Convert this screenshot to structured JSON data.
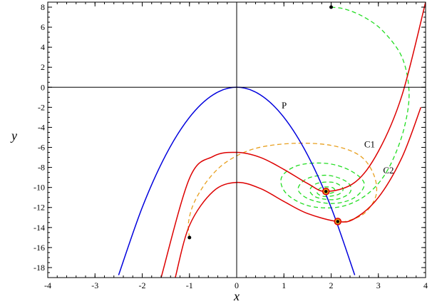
{
  "chart_data": {
    "type": "line",
    "title": "",
    "xlabel": "x",
    "ylabel": "y",
    "xlim": [
      -4,
      4
    ],
    "ylim": [
      -19,
      8.5
    ],
    "x_ticks": [
      -4,
      -3,
      -2,
      -1,
      0,
      1,
      2,
      3,
      4
    ],
    "y_ticks": [
      -18,
      -16,
      -14,
      -12,
      -10,
      -8,
      -6,
      -4,
      -2,
      0,
      2,
      4,
      6,
      8
    ],
    "grid": false,
    "legend": "none",
    "colors": {
      "parabola": "#0000dd",
      "cubic": "#dd0000",
      "orbit_outer": "#e8a020",
      "orbit_spiral": "#22dd22",
      "axes": "#000000"
    },
    "series": [
      {
        "name": "P",
        "kind": "curve",
        "color": "parabola",
        "x": [
          -2.5,
          -2.0,
          -1.5,
          -1.0,
          -0.5,
          0.0,
          0.5,
          1.0,
          1.5,
          2.0,
          2.5
        ],
        "y": [
          -18.75,
          -12.0,
          -6.75,
          -3.0,
          -0.75,
          0.0,
          -0.75,
          -3.0,
          -6.75,
          -12.0,
          -18.75
        ]
      },
      {
        "name": "C1",
        "kind": "curve",
        "color": "cubic",
        "x": [
          -1.6,
          -1.0,
          -0.5,
          0.0,
          0.5,
          1.0,
          1.5,
          1.89,
          2.5,
          3.0,
          3.5,
          4.0
        ],
        "y": [
          -19.0,
          -9.1,
          -6.9,
          -6.5,
          -7.0,
          -8.2,
          -9.6,
          -10.4,
          -9.5,
          -6.4,
          -0.8,
          8.5
        ]
      },
      {
        "name": "C2",
        "kind": "curve",
        "color": "cubic",
        "x": [
          -1.3,
          -1.0,
          -0.5,
          0.0,
          0.5,
          1.0,
          1.5,
          2.14,
          2.5,
          3.0,
          3.5,
          3.9
        ],
        "y": [
          -19.0,
          -13.8,
          -10.4,
          -9.5,
          -10.1,
          -11.4,
          -12.6,
          -13.4,
          -13.1,
          -11.0,
          -7.0,
          -2.0
        ]
      }
    ],
    "orbits": [
      {
        "kind": "outer",
        "color": "orbit_outer",
        "start": [
          -1.0,
          -15.0
        ],
        "end": [
          2.14,
          -13.4
        ],
        "points": [
          [
            -1.0,
            -15.0
          ],
          [
            -1.02,
            -13.5
          ],
          [
            -0.9,
            -11.5
          ],
          [
            -0.6,
            -9.2
          ],
          [
            -0.2,
            -7.4
          ],
          [
            0.4,
            -6.1
          ],
          [
            1.2,
            -5.6
          ],
          [
            2.0,
            -5.8
          ],
          [
            2.6,
            -6.8
          ],
          [
            2.9,
            -8.7
          ],
          [
            2.95,
            -10.8
          ],
          [
            2.7,
            -12.6
          ],
          [
            2.3,
            -13.4
          ],
          [
            2.14,
            -13.4
          ]
        ]
      },
      {
        "kind": "spiral",
        "color": "orbit_spiral",
        "start": [
          2.0,
          8.0
        ],
        "end": [
          1.89,
          -10.4
        ],
        "points": [
          [
            2.0,
            8.0
          ],
          [
            2.3,
            7.8
          ],
          [
            2.7,
            7.0
          ],
          [
            3.1,
            5.6
          ],
          [
            3.5,
            3.0
          ],
          [
            3.65,
            -0.5
          ],
          [
            3.55,
            -4.0
          ],
          [
            3.3,
            -7.3
          ],
          [
            3.0,
            -9.6
          ],
          [
            2.6,
            -11.2
          ],
          [
            2.1,
            -12.0
          ],
          [
            1.5,
            -11.8
          ],
          [
            1.05,
            -10.6
          ],
          [
            0.95,
            -9.0
          ],
          [
            1.3,
            -7.8
          ],
          [
            1.9,
            -7.6
          ],
          [
            2.4,
            -8.3
          ],
          [
            2.7,
            -9.6
          ],
          [
            2.5,
            -11.0
          ],
          [
            2.05,
            -11.6
          ],
          [
            1.55,
            -11.2
          ],
          [
            1.3,
            -10.2
          ],
          [
            1.5,
            -9.1
          ],
          [
            1.95,
            -8.8
          ],
          [
            2.35,
            -9.5
          ],
          [
            2.4,
            -10.5
          ],
          [
            2.1,
            -11.2
          ],
          [
            1.7,
            -11.0
          ],
          [
            1.55,
            -10.3
          ],
          [
            1.7,
            -9.6
          ],
          [
            2.05,
            -9.5
          ],
          [
            2.25,
            -10.1
          ],
          [
            2.15,
            -10.7
          ],
          [
            1.85,
            -10.9
          ],
          [
            1.7,
            -10.5
          ],
          [
            1.8,
            -10.0
          ],
          [
            2.02,
            -10.0
          ],
          [
            2.08,
            -10.4
          ],
          [
            1.95,
            -10.6
          ],
          [
            1.85,
            -10.45
          ],
          [
            1.89,
            -10.4
          ]
        ]
      }
    ],
    "markers": [
      {
        "kind": "start",
        "x": 2.0,
        "y": 8.0
      },
      {
        "kind": "start",
        "x": -1.0,
        "y": -15.0
      },
      {
        "kind": "fixed",
        "x": 1.89,
        "y": -10.4
      },
      {
        "kind": "fixed",
        "x": 2.14,
        "y": -13.4
      }
    ],
    "annotations": [
      {
        "text": "P",
        "x": 0.95,
        "y": -2.1
      },
      {
        "text": "C1",
        "x": 2.7,
        "y": -6.0
      },
      {
        "text": "C2",
        "x": 3.1,
        "y": -8.6
      }
    ]
  }
}
